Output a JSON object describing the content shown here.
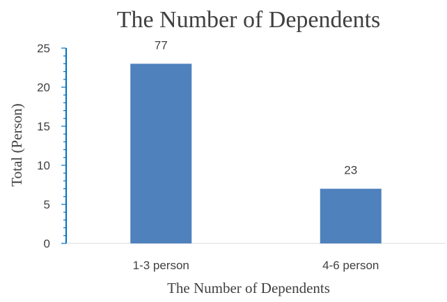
{
  "chart_data": {
    "type": "bar",
    "title": "The Number of Dependents",
    "xlabel": "The Number of Dependents",
    "ylabel": "Total (Person)",
    "categories": [
      "1-3 person",
      "4-6 person"
    ],
    "values": [
      23,
      7
    ],
    "data_labels": [
      "77",
      "23"
    ],
    "ylim": [
      0,
      25
    ],
    "yticks": [
      0,
      5,
      10,
      15,
      20,
      25
    ],
    "grid": false,
    "legend": "none",
    "colors": {
      "bar": "#4f81bd",
      "axis": "#0070c0",
      "baseline": "#d9d9d9",
      "text": "#404040"
    }
  }
}
